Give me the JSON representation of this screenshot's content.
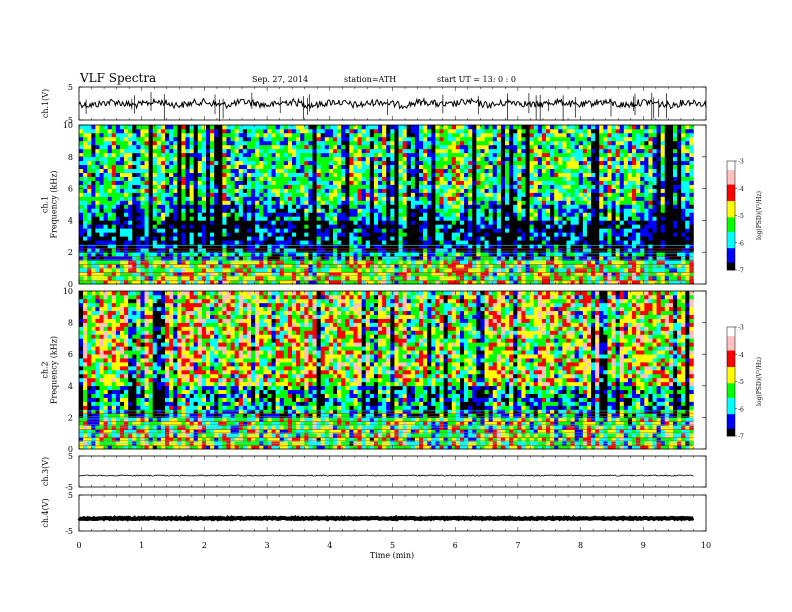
{
  "header": {
    "title": "VLF  Spectra",
    "date": "Sep. 27, 2014",
    "station": "station=ATH",
    "start": "start  UT  =   13: 0  : 0"
  },
  "chart_data": [
    {
      "type": "line",
      "panel": "ch1-waveform",
      "ylabel": "ch.1(V)",
      "ylim": [
        -5,
        5
      ],
      "yticks": [
        "5",
        "-5"
      ],
      "xlim": [
        0,
        10
      ],
      "baseline_v": 0,
      "trace_color": "#000000"
    },
    {
      "type": "heatmap",
      "panel": "ch1-spectrogram",
      "ylabel": "ch.1\nFrequency  (kHz)",
      "ylim": [
        0,
        10
      ],
      "yticks": [
        "0",
        "2",
        "4",
        "6",
        "8",
        "10"
      ],
      "xlim": [
        0,
        9.8
      ],
      "colorbar": {
        "label": "log(PSD)(V²/Hz)",
        "ticks": [
          "-3",
          "-4",
          "-5",
          "-6",
          "-7"
        ],
        "range": [
          -7,
          -3
        ]
      },
      "bands": [
        {
          "from_khz": 0,
          "to_khz": 1.6,
          "level": -4.6
        },
        {
          "from_khz": 1.6,
          "to_khz": 2.0,
          "level": -5.9
        },
        {
          "from_khz": 2.0,
          "to_khz": 4.0,
          "level": -6.6
        },
        {
          "from_khz": 4.0,
          "to_khz": 5.0,
          "level": -5.9
        },
        {
          "from_khz": 5.0,
          "to_khz": 10,
          "level": -5.2
        }
      ]
    },
    {
      "type": "heatmap",
      "panel": "ch2-spectrogram",
      "ylabel": "ch.2\nFrequency  (kHz)",
      "ylim": [
        0,
        10
      ],
      "yticks": [
        "0",
        "2",
        "4",
        "6",
        "8",
        "10"
      ],
      "xlim": [
        0,
        9.8
      ],
      "colorbar": {
        "label": "log(PSD)(V²/Hz)",
        "ticks": [
          "-3",
          "-4",
          "-5",
          "-6",
          "-7"
        ],
        "range": [
          -7,
          -3
        ]
      },
      "bands": [
        {
          "from_khz": 0,
          "to_khz": 2.0,
          "level": -4.8
        },
        {
          "from_khz": 2.0,
          "to_khz": 4.0,
          "level": -5.6
        },
        {
          "from_khz": 4.0,
          "to_khz": 10,
          "level": -4.3
        }
      ]
    },
    {
      "type": "line",
      "panel": "ch3-waveform",
      "ylabel": "ch.3(V)",
      "ylim": [
        -5,
        5
      ],
      "yticks": [
        "5",
        "-5"
      ],
      "xlim": [
        0,
        9.8
      ],
      "baseline_v": -1.3,
      "trace_color": "#000000"
    },
    {
      "type": "line",
      "panel": "ch4-waveform",
      "ylabel": "ch.4(V)",
      "ylim": [
        -5,
        5
      ],
      "yticks": [
        "5",
        "-5"
      ],
      "xlim": [
        0,
        9.8
      ],
      "baseline_v": -1.5,
      "trace_color": "#000000"
    }
  ],
  "xaxis": {
    "label": "Time  (min)",
    "ticks": [
      "0",
      "1",
      "2",
      "3",
      "4",
      "5",
      "6",
      "7",
      "8",
      "9",
      "10"
    ],
    "range": [
      0,
      10
    ]
  },
  "colors": {
    "colormap": [
      "#000000",
      "#0000ff",
      "#00ffff",
      "#00ff00",
      "#ffff00",
      "#ff0000",
      "#ffc0c0",
      "#ffffff"
    ]
  }
}
